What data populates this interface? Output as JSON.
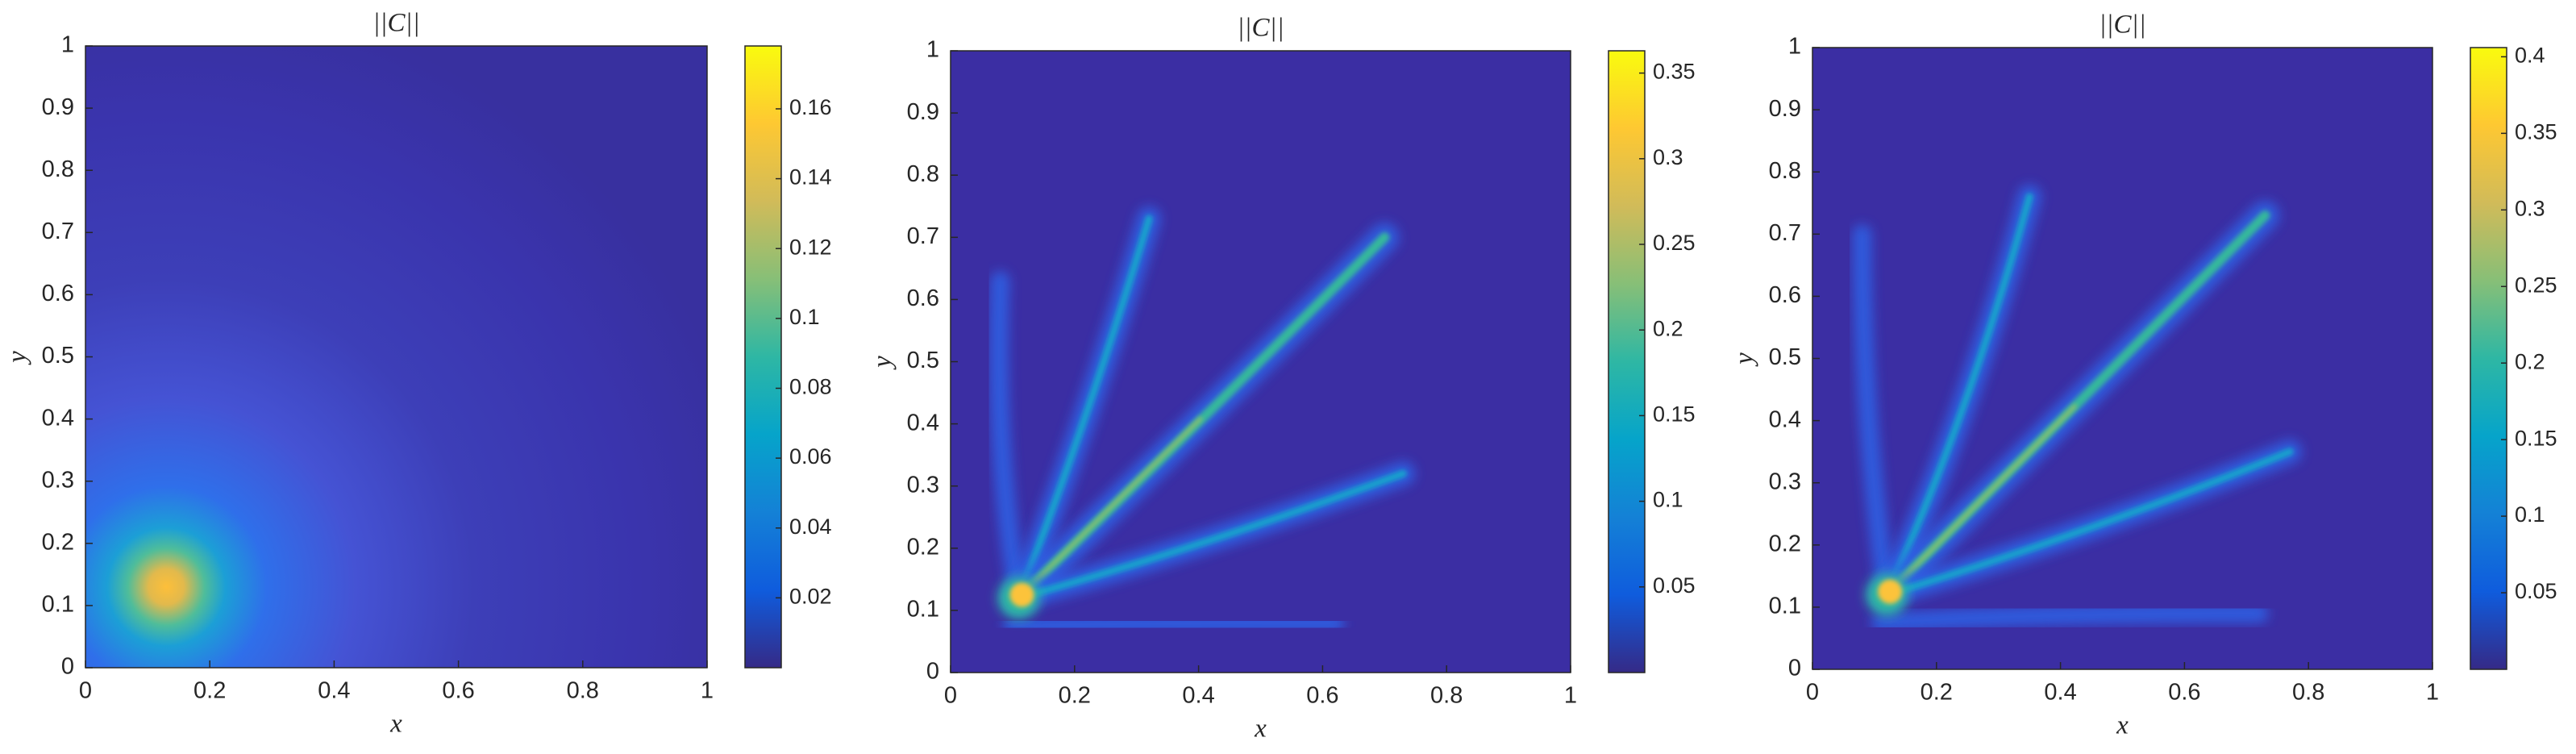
{
  "chart_data": [
    {
      "type": "heatmap",
      "title": "||C||",
      "xlabel": "x",
      "ylabel": "y",
      "xlim": [
        0,
        1
      ],
      "ylim": [
        0,
        1
      ],
      "xticks": [
        0,
        0.2,
        0.4,
        0.6,
        0.8,
        1
      ],
      "yticks": [
        0,
        0.1,
        0.2,
        0.3,
        0.4,
        0.5,
        0.6,
        0.7,
        0.8,
        0.9,
        1
      ],
      "clim": [
        0,
        0.178
      ],
      "cticks": [
        0.02,
        0.04,
        0.06,
        0.08,
        0.1,
        0.12,
        0.14,
        0.16
      ],
      "colormap": "parula"
    },
    {
      "type": "heatmap",
      "title": "||C||",
      "xlabel": "x",
      "ylabel": "y",
      "xlim": [
        0,
        1
      ],
      "ylim": [
        0,
        1
      ],
      "xticks": [
        0,
        0.2,
        0.4,
        0.6,
        0.8,
        1
      ],
      "yticks": [
        0,
        0.1,
        0.2,
        0.3,
        0.4,
        0.5,
        0.6,
        0.7,
        0.8,
        0.9,
        1
      ],
      "clim": [
        0,
        0.363
      ],
      "cticks": [
        0.05,
        0.1,
        0.15,
        0.2,
        0.25,
        0.3,
        0.35
      ],
      "colormap": "parula"
    },
    {
      "type": "heatmap",
      "title": "||C||",
      "xlabel": "x",
      "ylabel": "y",
      "xlim": [
        0,
        1
      ],
      "ylim": [
        0,
        1
      ],
      "xticks": [
        0,
        0.2,
        0.4,
        0.6,
        0.8,
        1
      ],
      "yticks": [
        0,
        0.1,
        0.2,
        0.3,
        0.4,
        0.5,
        0.6,
        0.7,
        0.8,
        0.9,
        1
      ],
      "clim": [
        0,
        0.406
      ],
      "cticks": [
        0.05,
        0.1,
        0.15,
        0.2,
        0.25,
        0.3,
        0.35,
        0.4
      ],
      "colormap": "parula"
    }
  ]
}
